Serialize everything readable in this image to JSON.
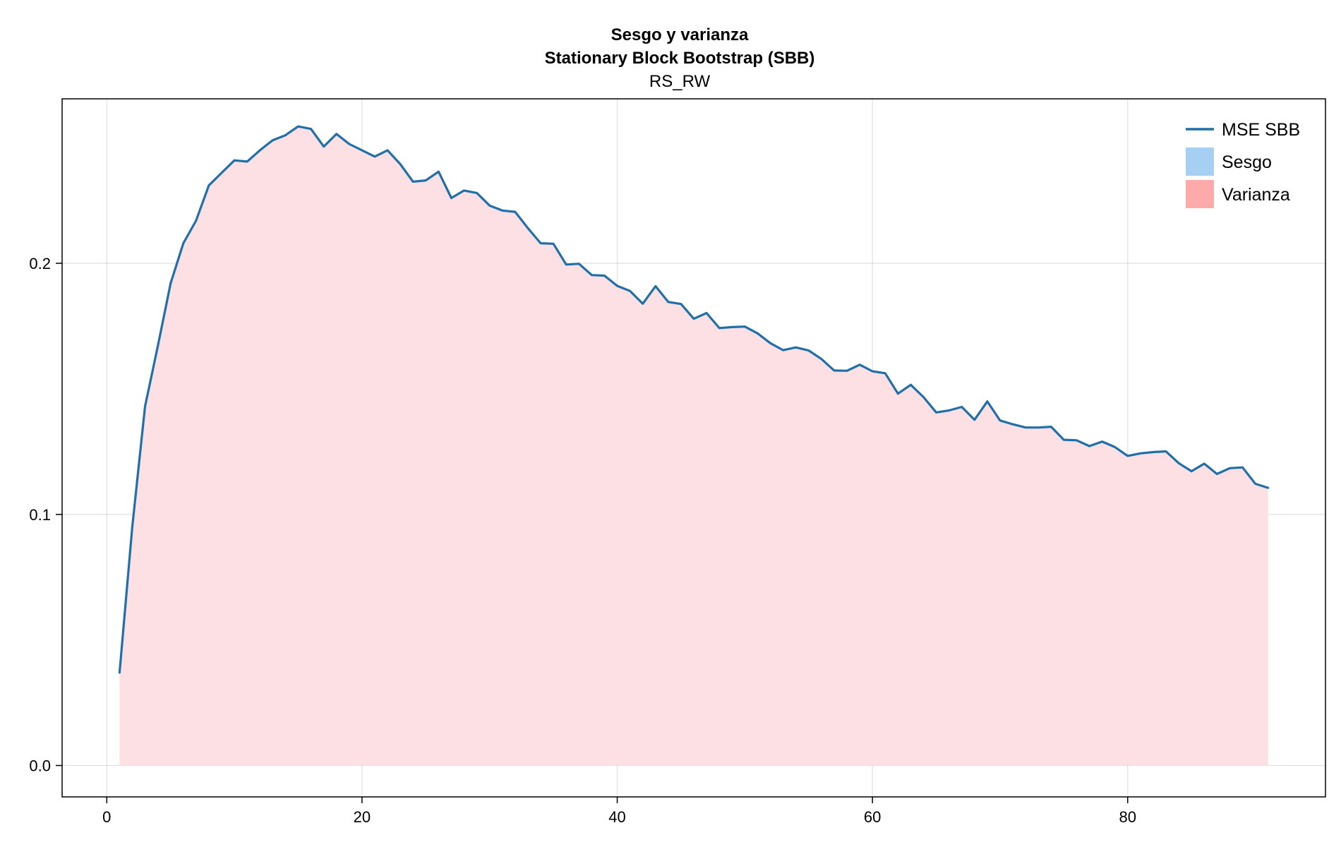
{
  "chart_data": {
    "type": "area",
    "title": "Sesgo y varianza",
    "subtitle": "Stationary Block Bootstrap (SBB)",
    "subtitle2": "RS_RW",
    "xlabel": "",
    "ylabel": "",
    "xlim": [
      -3.5,
      95.5
    ],
    "ylim": [
      -0.0125,
      0.2655
    ],
    "xticks": [
      0,
      20,
      40,
      60,
      80
    ],
    "xtick_labels": [
      "0",
      "20",
      "40",
      "60",
      "80"
    ],
    "yticks": [
      0.0,
      0.1,
      0.2
    ],
    "ytick_labels": [
      "0.0",
      "0.1",
      "0.2"
    ],
    "grid": true,
    "legend_position": "top-right",
    "colors": {
      "mse_line": "#1f6fa8",
      "sesgo": "#a6cff2",
      "varianza": "#ffaaaa",
      "varianza_fill": "#fde0e3"
    },
    "legend": [
      {
        "name": "MSE SBB",
        "kind": "line",
        "color": "#1f6fa8"
      },
      {
        "name": "Sesgo",
        "kind": "patch",
        "color": "#a6cff2"
      },
      {
        "name": "Varianza",
        "kind": "patch",
        "color": "#ffaaaa"
      }
    ],
    "x": [
      1,
      2,
      3,
      4,
      5,
      6,
      7,
      8,
      9,
      10,
      11,
      12,
      13,
      14,
      15,
      16,
      17,
      18,
      19,
      20,
      21,
      22,
      23,
      24,
      25,
      26,
      27,
      28,
      29,
      30,
      31,
      32,
      33,
      34,
      35,
      36,
      37,
      38,
      39,
      40,
      41,
      42,
      43,
      44,
      45,
      46,
      47,
      48,
      49,
      50,
      51,
      52,
      53,
      54,
      55,
      56,
      57,
      58,
      59,
      60,
      61,
      62,
      63,
      64,
      65,
      66,
      67,
      68,
      69,
      70,
      71,
      72,
      73,
      74,
      75,
      76,
      77,
      78,
      79,
      80,
      81,
      82,
      83,
      84,
      85,
      86,
      87,
      88,
      89,
      90,
      91
    ],
    "series": [
      {
        "name": "MSE SBB",
        "values": [
          0.037,
          0.095,
          0.143,
          0.167,
          0.192,
          0.208,
          0.217,
          0.231,
          0.236,
          0.241,
          0.2405,
          0.245,
          0.249,
          0.251,
          0.2545,
          0.2535,
          0.2465,
          0.2515,
          0.2475,
          0.245,
          0.2425,
          0.245,
          0.2395,
          0.2325,
          0.233,
          0.2365,
          0.226,
          0.229,
          0.228,
          0.223,
          0.221,
          0.2205,
          0.214,
          0.208,
          0.2078,
          0.1995,
          0.1998,
          0.1953,
          0.1951,
          0.191,
          0.189,
          0.1839,
          0.1909,
          0.1846,
          0.1838,
          0.1779,
          0.1802,
          0.1742,
          0.1746,
          0.1748,
          0.1721,
          0.1682,
          0.1654,
          0.1665,
          0.1653,
          0.1619,
          0.1573,
          0.1572,
          0.1596,
          0.157,
          0.1562,
          0.1481,
          0.1516,
          0.1467,
          0.1406,
          0.1414,
          0.1428,
          0.1377,
          0.145,
          0.1374,
          0.1359,
          0.1346,
          0.1346,
          0.1349,
          0.1297,
          0.1295,
          0.1272,
          0.129,
          0.1268,
          0.1233,
          0.1243,
          0.1248,
          0.1251,
          0.1204,
          0.1172,
          0.1202,
          0.1161,
          0.1184,
          0.1187,
          0.1122,
          0.1106
        ]
      }
    ]
  }
}
